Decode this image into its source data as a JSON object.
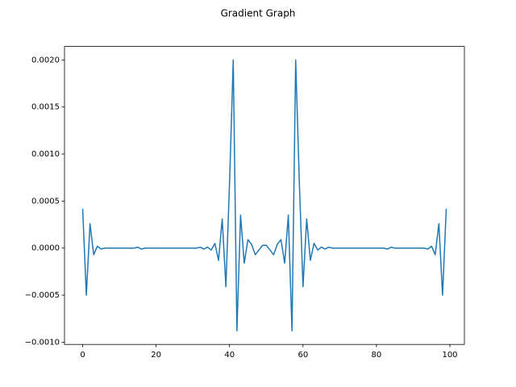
{
  "chart_data": {
    "type": "line",
    "title": "Gradient Graph",
    "x": [
      0,
      1,
      2,
      3,
      4,
      5,
      6,
      7,
      8,
      9,
      10,
      11,
      12,
      13,
      14,
      15,
      16,
      17,
      18,
      19,
      20,
      21,
      22,
      23,
      24,
      25,
      26,
      27,
      28,
      29,
      30,
      31,
      32,
      33,
      34,
      35,
      36,
      37,
      38,
      39,
      40,
      41,
      42,
      43,
      44,
      45,
      46,
      47,
      48,
      49,
      50,
      51,
      52,
      53,
      54,
      55,
      56,
      57,
      58,
      59,
      60,
      61,
      62,
      63,
      64,
      65,
      66,
      67,
      68,
      69,
      70,
      71,
      72,
      73,
      74,
      75,
      76,
      77,
      78,
      79,
      80,
      81,
      82,
      83,
      84,
      85,
      86,
      87,
      88,
      89,
      90,
      91,
      92,
      93,
      94,
      95,
      96,
      97,
      98,
      99
    ],
    "values": [
      0.00041,
      -0.0005,
      0.00026,
      -7e-05,
      2e-05,
      -1e-05,
      0,
      0,
      0,
      0,
      0,
      0,
      0,
      0,
      0,
      1e-05,
      -1e-05,
      0,
      0,
      0,
      0,
      0,
      0,
      0,
      0,
      0,
      0,
      0,
      0,
      0,
      0,
      0,
      1e-05,
      -1e-05,
      1e-05,
      -2e-05,
      5e-05,
      -0.00013,
      0.00031,
      -0.00041,
      0.0007,
      0.002,
      -0.00088,
      0.00035,
      -0.00016,
      9e-05,
      4e-05,
      -7e-05,
      -2e-05,
      3e-05,
      3e-05,
      -2e-05,
      -7e-05,
      4e-05,
      9e-05,
      -0.00016,
      0.00035,
      -0.00088,
      0.002,
      0.0007,
      -0.00041,
      0.00031,
      -0.00013,
      5e-05,
      -2e-05,
      1e-05,
      -1e-05,
      1e-05,
      0,
      0,
      0,
      0,
      0,
      0,
      0,
      0,
      0,
      0,
      0,
      0,
      0,
      0,
      0,
      -1e-05,
      1e-05,
      0,
      0,
      0,
      0,
      0,
      0,
      0,
      0,
      0,
      -1e-05,
      2e-05,
      -7e-05,
      0.00026,
      -0.0005,
      0.00041
    ],
    "color": "#1f77b4",
    "xlim": [
      -4.95,
      103.95
    ],
    "xticks": [
      0,
      20,
      40,
      60,
      80,
      100
    ],
    "ylim": [
      -0.001024,
      0.002144
    ],
    "yticks": [
      {
        "value": -0.001,
        "label": "−0.0010"
      },
      {
        "value": -0.0005,
        "label": "−0.0005"
      },
      {
        "value": 0,
        "label": "0.0000"
      },
      {
        "value": 0.0005,
        "label": "0.0005"
      },
      {
        "value": 0.001,
        "label": "0.0010"
      },
      {
        "value": 0.0015,
        "label": "0.0015"
      },
      {
        "value": 0.002,
        "label": "0.0020"
      }
    ]
  }
}
